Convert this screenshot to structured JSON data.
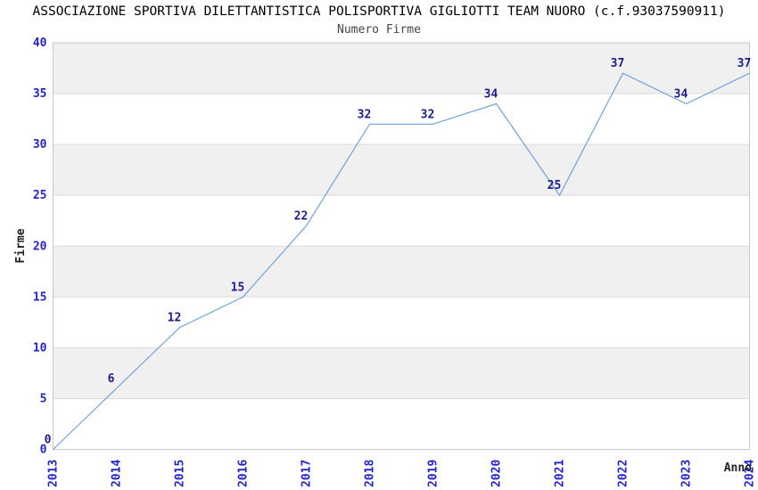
{
  "chart_data": {
    "type": "line",
    "title": "ASSOCIAZIONE SPORTIVA DILETTANTISTICA POLISPORTIVA GIGLIOTTI TEAM NUORO (c.f.93037590911)",
    "subtitle": "Numero Firme",
    "xlabel": "Anno",
    "ylabel": "Firme",
    "categories": [
      "2013",
      "2014",
      "2015",
      "2016",
      "2017",
      "2018",
      "2019",
      "2020",
      "2021",
      "2022",
      "2023",
      "2024"
    ],
    "values": [
      0,
      6,
      12,
      15,
      22,
      32,
      32,
      34,
      25,
      37,
      34,
      37
    ],
    "ylim": [
      0,
      40
    ],
    "yticks": [
      0,
      5,
      10,
      15,
      20,
      25,
      30,
      35,
      40
    ],
    "ytick_step": 5,
    "grid": true,
    "legend": "none",
    "banding": "alternating horizontal gray bands every 5 units",
    "x_tick_rotation": 90,
    "colors": {
      "line": "#6ea2e0",
      "data_label": "#1c1c8c",
      "tick_label": "#2323cc",
      "band": "#f0f0f0",
      "grid": "#dcdcdc",
      "border": "#c8c8c8",
      "title": "#000000",
      "subtitle": "#444444",
      "axis_title": "#222222",
      "background": "#ffffff"
    }
  }
}
